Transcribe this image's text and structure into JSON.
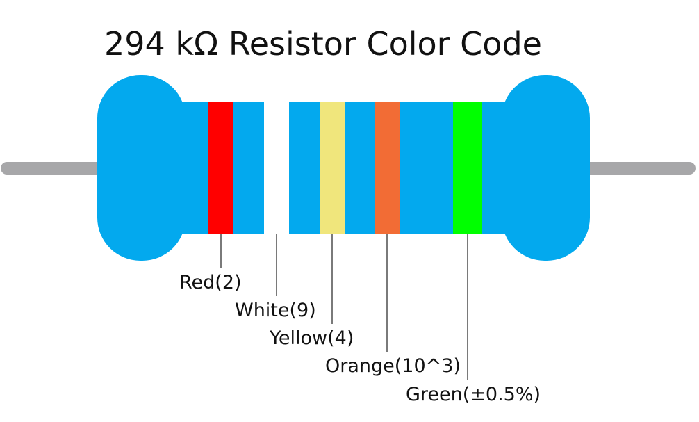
{
  "title": "294 kΩ Resistor Color Code",
  "bands": [
    {
      "label": "Red(2)"
    },
    {
      "label": "White(9)"
    },
    {
      "label": "Yellow(4)"
    },
    {
      "label": "Orange(10^3)"
    },
    {
      "label": "Green(±0.5%)"
    }
  ]
}
